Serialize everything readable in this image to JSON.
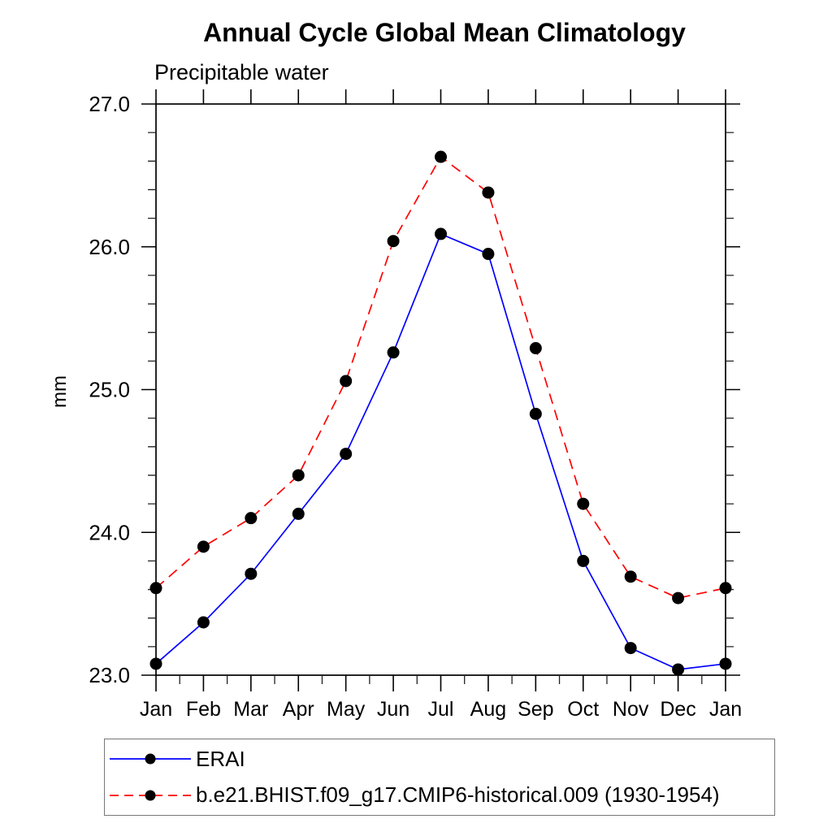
{
  "chart_data": {
    "type": "line",
    "title": "Annual Cycle Global Mean Climatology",
    "subtitle": "Precipitable water",
    "xlabel": "",
    "ylabel": "mm",
    "ylim": [
      23.0,
      27.0
    ],
    "ytick_values": [
      23.0,
      24.0,
      25.0,
      26.0,
      27.0
    ],
    "ytick_labels": [
      "23.0",
      "24.0",
      "25.0",
      "26.0",
      "27.0"
    ],
    "y_minor_step": 0.2,
    "x_minor_step": 0.5,
    "categories": [
      "Jan",
      "Feb",
      "Mar",
      "Apr",
      "May",
      "Jun",
      "Jul",
      "Aug",
      "Sep",
      "Oct",
      "Nov",
      "Dec",
      "Jan"
    ],
    "grid": false,
    "legend_position": "bottom",
    "marker_color": "#000000",
    "series": [
      {
        "name": "ERAI",
        "color": "#0000ff",
        "style": "solid",
        "marker": "circle",
        "values": [
          23.08,
          23.37,
          23.71,
          24.13,
          24.55,
          25.26,
          26.09,
          25.95,
          24.83,
          23.8,
          23.19,
          23.04,
          23.08
        ]
      },
      {
        "name": "b.e21.BHIST.f09_g17.CMIP6-historical.009 (1930-1954)",
        "color": "#ff0000",
        "style": "dashed",
        "marker": "circle",
        "values": [
          23.61,
          23.9,
          24.1,
          24.4,
          25.06,
          26.04,
          26.63,
          26.38,
          25.29,
          24.2,
          23.69,
          23.54,
          23.61
        ]
      }
    ]
  }
}
